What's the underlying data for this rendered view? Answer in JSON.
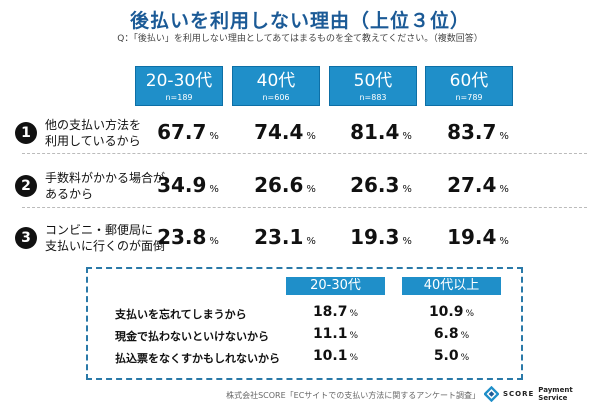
{
  "title": "後払いを利用しない理由（上位３位）",
  "subtitle": "Q：「後払い」を利用しない理由としてあてはまるものを全て教えてください。（複数回答）",
  "chart_data": {
    "type": "table",
    "columns": [
      {
        "label": "20-30代",
        "n": "n=189"
      },
      {
        "label": "40代",
        "n": "n=606"
      },
      {
        "label": "50代",
        "n": "n=883"
      },
      {
        "label": "60代",
        "n": "n=789"
      }
    ],
    "rows": [
      {
        "rank": "1",
        "label": "他の支払い方法を\n利用しているから",
        "l1": "他の支払い方法を",
        "l2": "利用しているから",
        "values": [
          "67.7",
          "74.4",
          "81.4",
          "83.7"
        ]
      },
      {
        "rank": "2",
        "label": "手数料がかかる場合が\nあるから",
        "l1": "手数料がかかる場合が",
        "l2": "あるから",
        "values": [
          "34.9",
          "26.6",
          "26.3",
          "27.4"
        ]
      },
      {
        "rank": "3",
        "label": "コンビニ・郵便局に\n支払いに行くのが面倒",
        "l1": "コンビニ・郵便局に",
        "l2": "支払いに行くのが面倒",
        "values": [
          "23.8",
          "23.1",
          "19.3",
          "19.4"
        ]
      }
    ],
    "unit": "%",
    "sub_table": {
      "columns": [
        "20-30代",
        "40代以上"
      ],
      "rows": [
        {
          "label": "支払いを忘れてしまうから",
          "values": [
            "18.7",
            "10.9"
          ]
        },
        {
          "label": "現金で払わないといけないから",
          "values": [
            "11.1",
            "6.8"
          ]
        },
        {
          "label": "払込票をなくすかもしれないから",
          "values": [
            "10.1",
            "5.0"
          ]
        }
      ]
    }
  },
  "footer": "株式会社SCORE「ECサイトでの支払い方法に関するアンケート調査」",
  "logo": {
    "name": "SCORE",
    "tagline": "Payment Service"
  },
  "colors": {
    "title": "#1b5a96",
    "header": "#1f8fc9"
  }
}
